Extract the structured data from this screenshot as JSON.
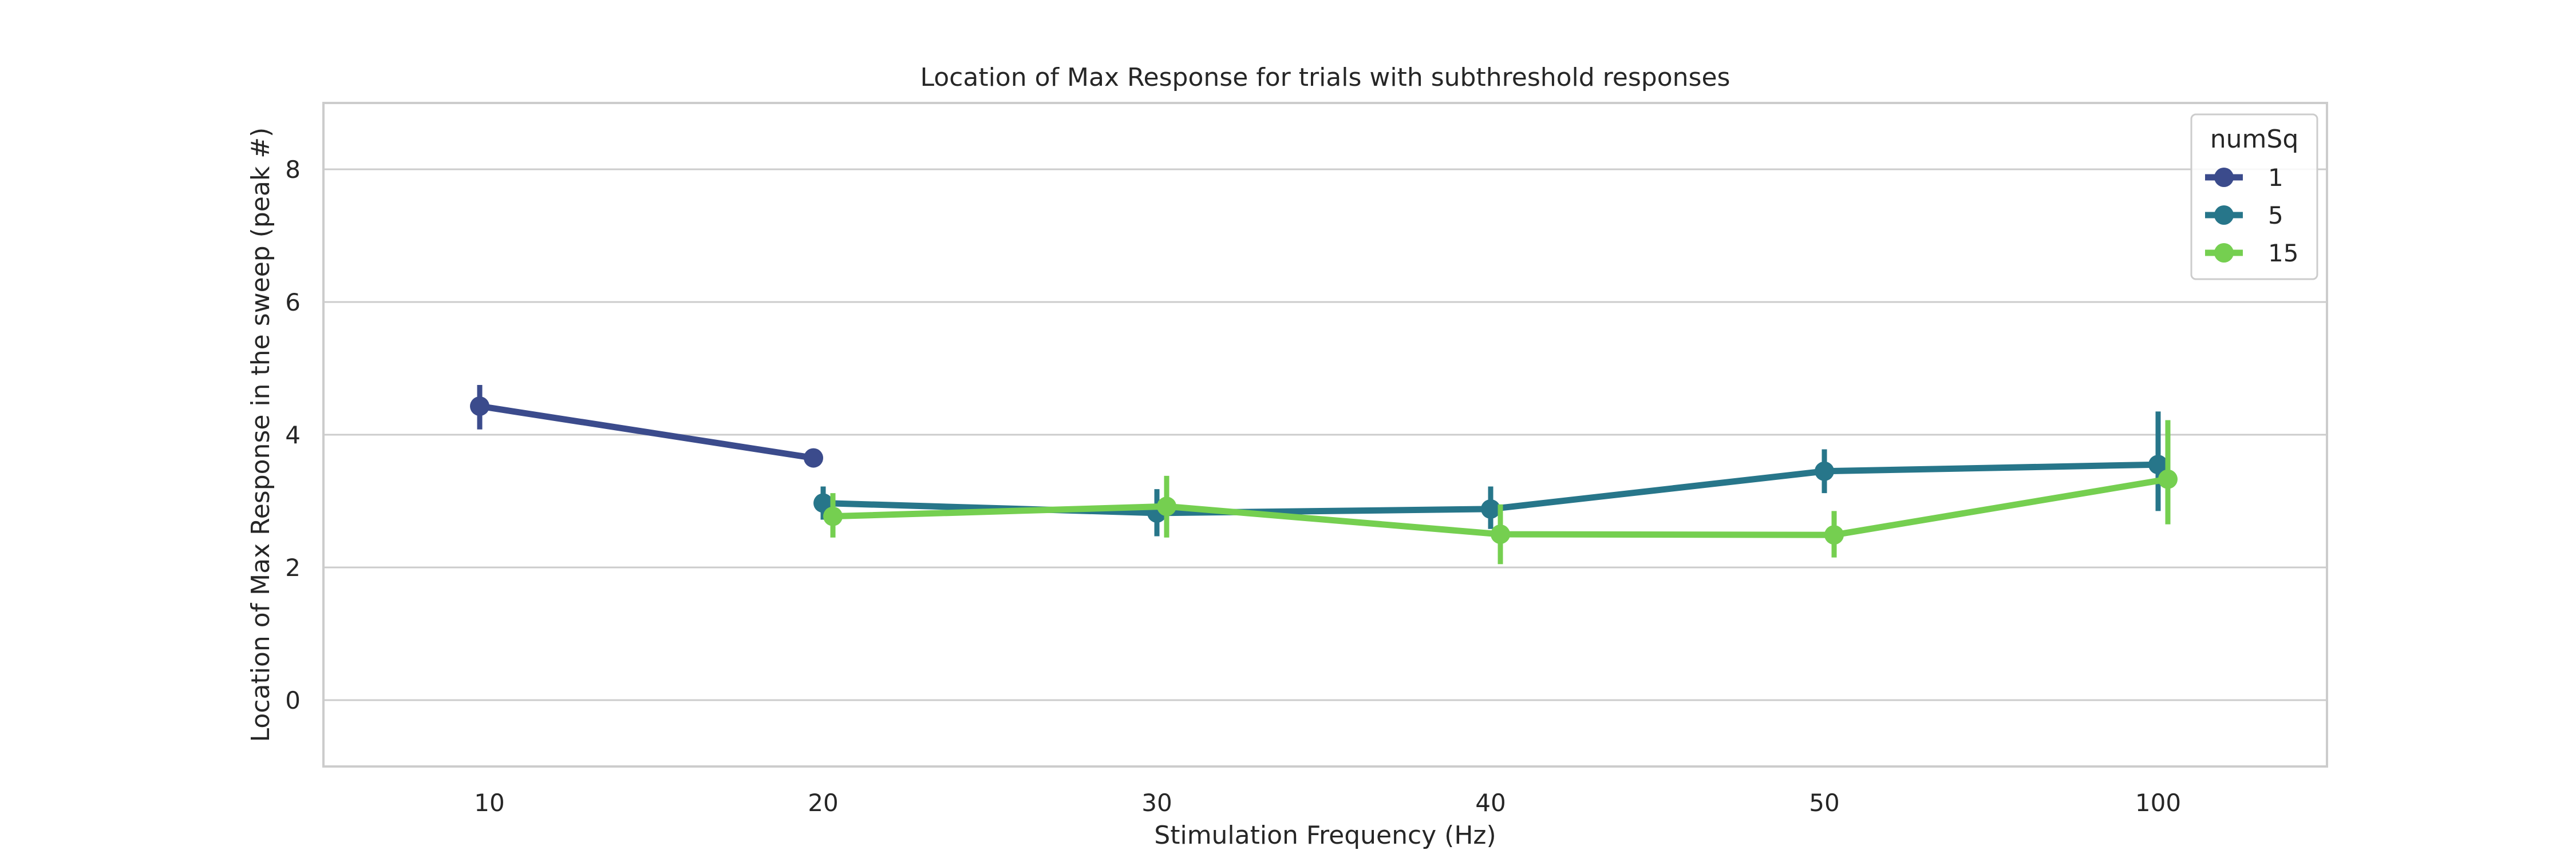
{
  "chart_data": {
    "type": "line",
    "title": "Location of Max Response for trials with subthreshold responses",
    "xlabel": "Stimulation Frequency (Hz)",
    "ylabel": "Location of Max Response in the sweep (peak #)",
    "categories": [
      "10",
      "20",
      "30",
      "40",
      "50",
      "100"
    ],
    "yticks": [
      0,
      2,
      4,
      6,
      8
    ],
    "ylim": [
      -1,
      9
    ],
    "grid": "horizontal",
    "legend": {
      "title": "numSq",
      "placement": "top-right"
    },
    "series": [
      {
        "name": "1",
        "color": "#3b4b8c",
        "values": [
          4.43,
          3.65,
          null,
          null,
          null,
          null
        ],
        "err_low": [
          4.08,
          3.58,
          null,
          null,
          null,
          null
        ],
        "err_high": [
          4.75,
          3.72,
          null,
          null,
          null,
          null
        ]
      },
      {
        "name": "5",
        "color": "#27768a",
        "values": [
          null,
          2.97,
          2.82,
          2.88,
          3.45,
          3.55
        ],
        "err_low": [
          null,
          2.72,
          2.47,
          2.58,
          3.12,
          2.85
        ],
        "err_high": [
          null,
          3.22,
          3.18,
          3.22,
          3.78,
          4.35
        ]
      },
      {
        "name": "15",
        "color": "#75cf50",
        "values": [
          null,
          2.77,
          2.92,
          2.5,
          2.49,
          3.33
        ],
        "err_low": [
          null,
          2.45,
          2.45,
          2.05,
          2.15,
          2.65
        ],
        "err_high": [
          null,
          3.12,
          3.38,
          2.95,
          2.85,
          4.22
        ]
      }
    ]
  }
}
